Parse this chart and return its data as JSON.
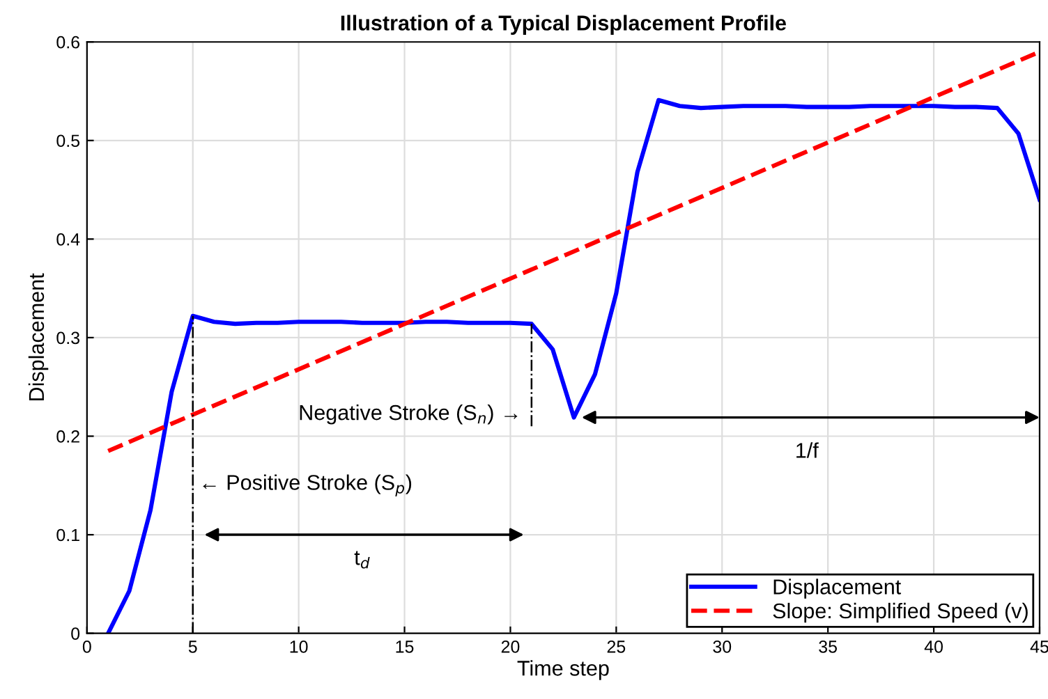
{
  "chart_data": {
    "type": "line",
    "title": "Illustration of a Typical Displacement Profile",
    "xlabel": "Time step",
    "ylabel": "Displacement",
    "x": [
      1,
      2,
      3,
      4,
      5,
      6,
      7,
      8,
      9,
      10,
      11,
      12,
      13,
      14,
      15,
      16,
      17,
      18,
      19,
      20,
      21,
      22,
      23,
      24,
      25,
      26,
      27,
      28,
      29,
      30,
      31,
      32,
      33,
      34,
      35,
      36,
      37,
      38,
      39,
      40,
      41,
      42,
      43,
      44,
      45
    ],
    "series": [
      {
        "name": "Displacement",
        "color": "#0000ff",
        "line_style": "solid",
        "values": [
          0,
          0.043,
          0.125,
          0.245,
          0.322,
          0.316,
          0.314,
          0.315,
          0.315,
          0.316,
          0.316,
          0.316,
          0.315,
          0.315,
          0.315,
          0.316,
          0.316,
          0.315,
          0.315,
          0.315,
          0.314,
          0.288,
          0.219,
          0.263,
          0.345,
          0.468,
          0.541,
          0.535,
          0.533,
          0.534,
          0.535,
          0.535,
          0.535,
          0.534,
          0.534,
          0.534,
          0.535,
          0.535,
          0.535,
          0.535,
          0.534,
          0.534,
          0.533,
          0.507,
          0.44
        ]
      },
      {
        "name": "Slope: Simplified Speed (v)",
        "color": "#ff0000",
        "line_style": "dashed",
        "x": [
          1,
          45
        ],
        "values": [
          0.185,
          0.59
        ]
      }
    ],
    "annotations": [
      "← Positive Stroke (S$_{p}$)",
      {
        "text": "Negative Stroke (S$_{n}$) →",
        "x": 21,
        "y": 0.314
      },
      "t$_{d}$",
      "1/f"
    ],
    "xlim": [
      0,
      45
    ],
    "ylim": [
      0,
      0.6
    ],
    "xticks": [
      0,
      5,
      10,
      15,
      20,
      25,
      30,
      35,
      40,
      45
    ],
    "yticks": [
      0,
      0.1,
      0.2,
      0.3,
      0.4,
      0.5,
      0.6
    ],
    "grid": true,
    "legend": "bottom right"
  }
}
